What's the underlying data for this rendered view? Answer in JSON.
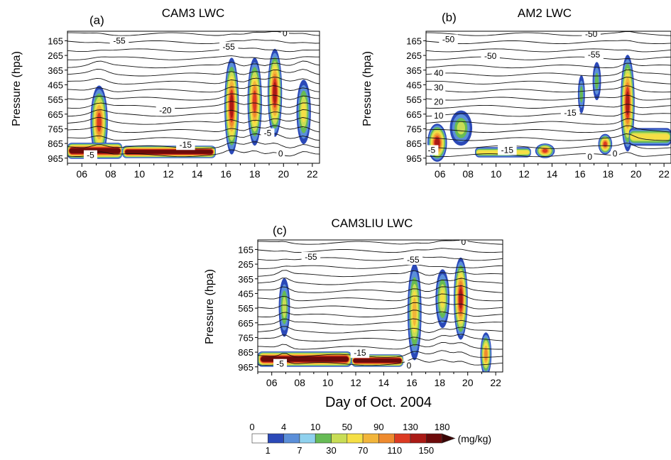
{
  "figure": {
    "xlabel": "Day of Oct. 2004",
    "colorbar": {
      "unit": "(mg/kg)",
      "upper_labels": [
        "0",
        "4",
        "10",
        "50",
        "90",
        "130",
        "180"
      ],
      "lower_labels": [
        "1",
        "7",
        "30",
        "70",
        "110",
        "150"
      ],
      "colors": [
        "#ffffff",
        "#2b49b8",
        "#5b8fd9",
        "#8fd1ee",
        "#66bb55",
        "#c8dd55",
        "#f5df45",
        "#f2b53a",
        "#ee8a2e",
        "#dc3a22",
        "#aa1a15",
        "#6d0a0a"
      ]
    }
  },
  "chart_data": [
    {
      "type": "heatmap",
      "panel": "(a)",
      "title": "CAM3 LWC",
      "ylabel": "Pressure (hpa)",
      "x_ticks": [
        "06",
        "08",
        "10",
        "12",
        "14",
        "16",
        "18",
        "20",
        "22"
      ],
      "x_tick_values": [
        6,
        8,
        10,
        12,
        14,
        16,
        18,
        20,
        22
      ],
      "xlim": [
        5,
        22.5
      ],
      "y_ticks": [
        "165",
        "265",
        "365",
        "465",
        "565",
        "665",
        "765",
        "865",
        "965"
      ],
      "y_tick_values": [
        165,
        265,
        365,
        465,
        565,
        665,
        765,
        865,
        965
      ],
      "ylim": [
        1000,
        100
      ],
      "contour_labels": [
        {
          "text": "-55",
          "day": 8.6,
          "p": 175
        },
        {
          "text": "-55",
          "day": 16.2,
          "p": 215
        },
        {
          "text": "-20",
          "day": 11.8,
          "p": 650
        },
        {
          "text": "-15",
          "day": 13.2,
          "p": 885
        },
        {
          "text": "-5",
          "day": 6.6,
          "p": 955
        },
        {
          "text": "-5",
          "day": 18.9,
          "p": 805
        },
        {
          "text": "0",
          "day": 19.8,
          "p": 945
        },
        {
          "text": "0",
          "day": 20.1,
          "p": 125
        }
      ],
      "lwc_features": [
        {
          "shape": "ellipse",
          "day": 7.2,
          "p": 720,
          "rx_days": 0.6,
          "rp_hpa": 250,
          "max_mgkg": 120
        },
        {
          "shape": "band",
          "day_start": 5.0,
          "day_end": 8.8,
          "p_top": 860,
          "p_bottom": 970,
          "max_mgkg": 180
        },
        {
          "shape": "band",
          "day_start": 8.8,
          "day_end": 15.3,
          "p_top": 880,
          "p_bottom": 965,
          "max_mgkg": 180
        },
        {
          "shape": "ellipse",
          "day": 16.4,
          "p": 610,
          "rx_days": 0.5,
          "rp_hpa": 330,
          "max_mgkg": 130
        },
        {
          "shape": "ellipse",
          "day": 18.0,
          "p": 580,
          "rx_days": 0.5,
          "rp_hpa": 300,
          "max_mgkg": 110
        },
        {
          "shape": "ellipse",
          "day": 19.4,
          "p": 520,
          "rx_days": 0.5,
          "rp_hpa": 300,
          "max_mgkg": 130
        },
        {
          "shape": "ellipse",
          "day": 21.4,
          "p": 650,
          "rx_days": 0.5,
          "rp_hpa": 220,
          "max_mgkg": 50
        }
      ]
    },
    {
      "type": "heatmap",
      "panel": "(b)",
      "title": "AM2 LWC",
      "ylabel": "Pressure (hpa)",
      "x_ticks": [
        "06",
        "08",
        "10",
        "12",
        "14",
        "16",
        "18",
        "20",
        "22"
      ],
      "x_tick_values": [
        6,
        8,
        10,
        12,
        14,
        16,
        18,
        20,
        22
      ],
      "xlim": [
        5,
        22.5
      ],
      "y_ticks": [
        "165",
        "265",
        "365",
        "465",
        "565",
        "665",
        "765",
        "865",
        "965"
      ],
      "y_tick_values": [
        165,
        265,
        365,
        465,
        565,
        665,
        765,
        865,
        965
      ],
      "ylim": [
        1000,
        100
      ],
      "contour_labels": [
        {
          "text": "-50",
          "day": 6.6,
          "p": 165
        },
        {
          "text": "-50",
          "day": 9.6,
          "p": 280
        },
        {
          "text": "-50",
          "day": 16.8,
          "p": 130
        },
        {
          "text": "-55",
          "day": 17.0,
          "p": 270
        },
        {
          "text": "40",
          "day": 5.9,
          "p": 395
        },
        {
          "text": "30",
          "day": 5.9,
          "p": 495
        },
        {
          "text": "20",
          "day": 5.9,
          "p": 590
        },
        {
          "text": "10",
          "day": 5.9,
          "p": 685
        },
        {
          "text": "-15",
          "day": 15.3,
          "p": 665
        },
        {
          "text": "-5",
          "day": 5.4,
          "p": 920
        },
        {
          "text": "-15",
          "day": 10.8,
          "p": 920
        },
        {
          "text": "0",
          "day": 16.7,
          "p": 965
        },
        {
          "text": "0",
          "day": 18.5,
          "p": 945
        }
      ],
      "lwc_features": [
        {
          "shape": "ellipse",
          "day": 5.8,
          "p": 860,
          "rx_days": 0.7,
          "rp_hpa": 130,
          "max_mgkg": 130
        },
        {
          "shape": "ellipse",
          "day": 7.5,
          "p": 760,
          "rx_days": 0.8,
          "rp_hpa": 120,
          "max_mgkg": 30
        },
        {
          "shape": "band",
          "day_start": 8.5,
          "day_end": 12.5,
          "p_top": 890,
          "p_bottom": 960,
          "max_mgkg": 50
        },
        {
          "shape": "ellipse",
          "day": 13.5,
          "p": 915,
          "rx_days": 0.7,
          "rp_hpa": 50,
          "max_mgkg": 110
        },
        {
          "shape": "ellipse",
          "day": 16.1,
          "p": 530,
          "rx_days": 0.25,
          "rp_hpa": 130,
          "max_mgkg": 10
        },
        {
          "shape": "ellipse",
          "day": 17.2,
          "p": 440,
          "rx_days": 0.3,
          "rp_hpa": 130,
          "max_mgkg": 10
        },
        {
          "shape": "ellipse",
          "day": 17.8,
          "p": 870,
          "rx_days": 0.5,
          "rp_hpa": 70,
          "max_mgkg": 110
        },
        {
          "shape": "ellipse",
          "day": 19.4,
          "p": 590,
          "rx_days": 0.5,
          "rp_hpa": 330,
          "max_mgkg": 130
        },
        {
          "shape": "band",
          "day_start": 19.5,
          "day_end": 22.5,
          "p_top": 760,
          "p_bottom": 880,
          "max_mgkg": 50
        }
      ]
    },
    {
      "type": "heatmap",
      "panel": "(c)",
      "title": "CAM3LIU LWC",
      "ylabel": "Pressure (hpa)",
      "x_ticks": [
        "06",
        "08",
        "10",
        "12",
        "14",
        "16",
        "18",
        "20",
        "22"
      ],
      "x_tick_values": [
        6,
        8,
        10,
        12,
        14,
        16,
        18,
        20,
        22
      ],
      "xlim": [
        5,
        22.5
      ],
      "y_ticks": [
        "165",
        "265",
        "365",
        "465",
        "565",
        "665",
        "765",
        "865",
        "965"
      ],
      "y_tick_values": [
        165,
        265,
        365,
        465,
        565,
        665,
        765,
        865,
        965
      ],
      "ylim": [
        1000,
        100
      ],
      "contour_labels": [
        {
          "text": "-55",
          "day": 8.8,
          "p": 225
        },
        {
          "text": "-55",
          "day": 16.1,
          "p": 245
        },
        {
          "text": "-15",
          "day": 12.3,
          "p": 880
        },
        {
          "text": "-5",
          "day": 6.6,
          "p": 955
        },
        {
          "text": "0",
          "day": 15.8,
          "p": 965
        },
        {
          "text": "0",
          "day": 19.7,
          "p": 125
        }
      ],
      "lwc_features": [
        {
          "shape": "ellipse",
          "day": 6.9,
          "p": 560,
          "rx_days": 0.4,
          "rp_hpa": 200,
          "max_mgkg": 30
        },
        {
          "shape": "band",
          "day_start": 5.0,
          "day_end": 11.7,
          "p_top": 860,
          "p_bottom": 965,
          "max_mgkg": 180
        },
        {
          "shape": "band",
          "day_start": 11.7,
          "day_end": 15.4,
          "p_top": 880,
          "p_bottom": 965,
          "max_mgkg": 180
        },
        {
          "shape": "ellipse",
          "day": 16.2,
          "p": 590,
          "rx_days": 0.5,
          "rp_hpa": 330,
          "max_mgkg": 70
        },
        {
          "shape": "ellipse",
          "day": 18.2,
          "p": 500,
          "rx_days": 0.5,
          "rp_hpa": 200,
          "max_mgkg": 50
        },
        {
          "shape": "ellipse",
          "day": 19.5,
          "p": 500,
          "rx_days": 0.5,
          "rp_hpa": 280,
          "max_mgkg": 130
        },
        {
          "shape": "ellipse",
          "day": 21.3,
          "p": 880,
          "rx_days": 0.4,
          "rp_hpa": 150,
          "max_mgkg": 90
        }
      ]
    }
  ]
}
